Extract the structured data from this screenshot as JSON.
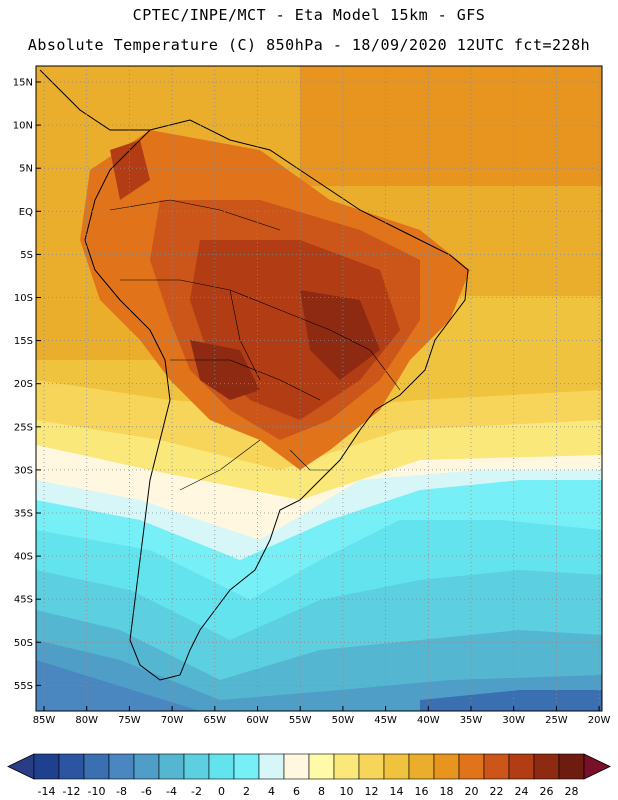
{
  "header": {
    "line1": "CPTEC/INPE/MCT -  Eta Model 15km - GFS",
    "line2": "Absolute Temperature (C) 850hPa - 18/09/2020 12UTC fct=228h"
  },
  "axes": {
    "lat_labels": [
      "15N",
      "10N",
      "5N",
      "EQ",
      "5S",
      "10S",
      "15S",
      "20S",
      "25S",
      "30S",
      "35S",
      "40S",
      "45S",
      "50S",
      "55S"
    ],
    "lon_labels": [
      "85W",
      "80W",
      "75W",
      "70W",
      "65W",
      "60W",
      "55W",
      "50W",
      "45W",
      "40W",
      "35W",
      "30W",
      "25W",
      "20W"
    ]
  },
  "colorbar": {
    "labels": [
      "-14",
      "-12",
      "-10",
      "-8",
      "-6",
      "-4",
      "-2",
      "0",
      "2",
      "4",
      "6",
      "8",
      "10",
      "12",
      "14",
      "16",
      "18",
      "20",
      "22",
      "24",
      "26",
      "28"
    ],
    "colors": [
      "#1f3f8f",
      "#2b55a0",
      "#3a6fb2",
      "#4a86c0",
      "#4e9ec8",
      "#55b6d2",
      "#5ccfe0",
      "#62e3ee",
      "#76f0f6",
      "#d6f6f8",
      "#fff7e0",
      "#fffaa8",
      "#fbe87a",
      "#f6d55a",
      "#f0c33e",
      "#ebae2c",
      "#e89520",
      "#e1741b",
      "#cc5519",
      "#b23d15",
      "#8f2a12",
      "#6e1c0f"
    ]
  }
}
